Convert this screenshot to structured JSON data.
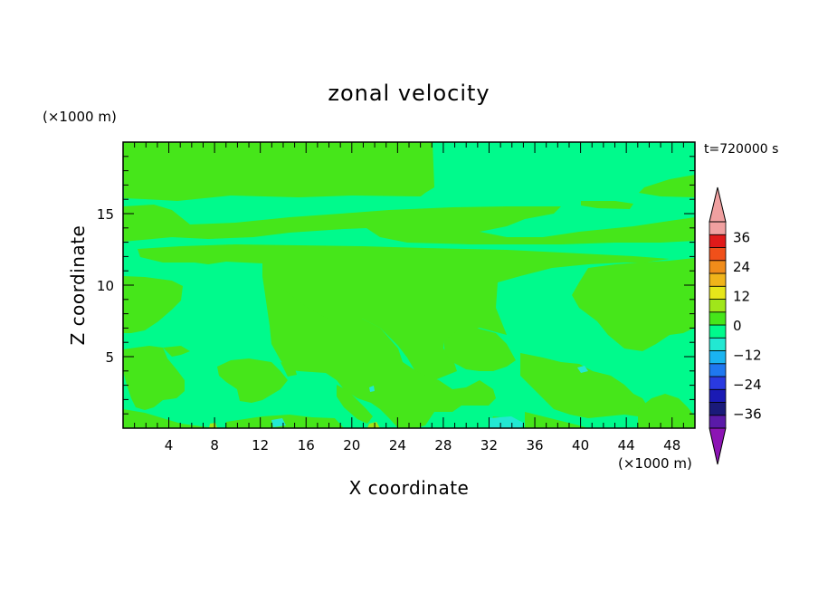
{
  "chart_data": {
    "type": "heatmap",
    "title": "zonal velocity",
    "xlabel": "X coordinate",
    "ylabel": "Z coordinate",
    "x_unit": "(×1000 m)",
    "y_unit": "(×1000 m)",
    "time_label": "t=720000 s",
    "xlim": [
      0,
      50
    ],
    "ylim": [
      0,
      20
    ],
    "x_ticks": [
      4,
      8,
      12,
      16,
      20,
      24,
      28,
      32,
      36,
      40,
      44,
      48
    ],
    "y_ticks": [
      5,
      10,
      15
    ],
    "colorbar": {
      "levels": [
        -42,
        -36,
        -30,
        -24,
        -18,
        -12,
        -6,
        0,
        6,
        12,
        18,
        24,
        30,
        36,
        42
      ],
      "colors": [
        "#5a1aa8",
        "#1a1a7a",
        "#1a1ab4",
        "#2a3ae0",
        "#1f78f0",
        "#1ab4f0",
        "#22e8d2",
        "#00fa8c",
        "#46e61a",
        "#a0e61a",
        "#e6e61a",
        "#f0b41a",
        "#f08c1a",
        "#f0501a",
        "#e01a1a",
        "#f0a0a0"
      ],
      "under_color": "#8c14b4",
      "over_color": "#f0a0a0",
      "labels": [
        36,
        24,
        12,
        0,
        -12,
        -24,
        -36
      ],
      "label_texts": [
        "36",
        "24",
        "12",
        "0",
        "−12",
        "−24",
        "−36"
      ]
    },
    "regions": [
      {
        "range": "0 to 6",
        "color": "#46e61a"
      },
      {
        "range": "-6 to 0",
        "color": "#00fa8c"
      },
      {
        "range": "-12 to -6",
        "color": "#22e8d2"
      }
    ]
  }
}
